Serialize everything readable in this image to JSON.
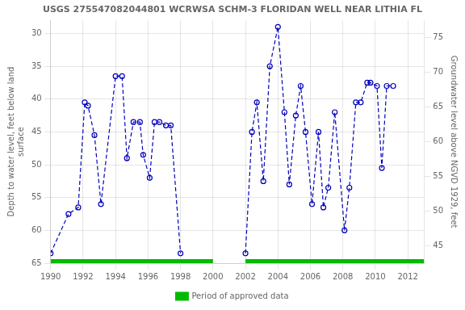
{
  "chart_data": {
    "type": "line",
    "title": "USGS 275547082044801 WCRWSA SCHM-3 FLORIDAN WELL NEAR LITHIA FL",
    "y_label": "Depth to water level, feet below land\nsurface",
    "y2_label": "Groundwater level above NGVD 1929, feet",
    "x": [
      1990.0,
      1991.1,
      1991.7,
      1992.1,
      1992.3,
      1992.7,
      1993.1,
      1994.0,
      1994.4,
      1994.7,
      1995.1,
      1995.5,
      1995.7,
      1996.1,
      1996.4,
      1996.7,
      1997.1,
      1997.4,
      1998.0,
      null,
      2002.0,
      2002.4,
      2002.7,
      2003.1,
      2003.5,
      2004.0,
      2004.4,
      2004.7,
      2005.1,
      2005.4,
      2005.7,
      2006.1,
      2006.5,
      2006.8,
      2007.1,
      2007.5,
      2008.1,
      2008.4,
      2008.8,
      2009.1,
      2009.5,
      2009.7,
      2010.1,
      2010.4,
      2010.7,
      2011.1
    ],
    "series": [
      {
        "color": "#0000bb",
        "marker": "circle",
        "line_style": "dashed",
        "values": [
          63.5,
          57.5,
          56.5,
          40.5,
          41.0,
          45.5,
          56.0,
          36.5,
          36.5,
          49.0,
          43.5,
          43.5,
          48.5,
          52.0,
          43.5,
          43.5,
          44.0,
          44.0,
          63.5,
          null,
          63.5,
          45.0,
          40.5,
          52.5,
          35.0,
          29.0,
          42.0,
          53.0,
          42.5,
          38.0,
          45.0,
          56.0,
          45.0,
          56.5,
          53.5,
          42.0,
          60.0,
          53.5,
          40.5,
          40.5,
          37.5,
          37.5,
          38.0,
          50.5,
          38.0,
          38.0
        ]
      },
      {
        "name": "Period of approved data",
        "type": "span",
        "color": "#00bb00",
        "ranges": [
          [
            1990.0,
            2000.0
          ],
          [
            2002.0,
            2013.0
          ]
        ]
      }
    ],
    "xlim": [
      1990,
      2013
    ],
    "xticks": [
      1990,
      1992,
      1994,
      1996,
      1998,
      2000,
      2002,
      2004,
      2006,
      2008,
      2010,
      2012
    ],
    "ylim": [
      65,
      28
    ],
    "yticks": [
      30,
      35,
      40,
      45,
      50,
      55,
      60,
      65
    ],
    "y2lim": [
      42.5,
      77.5
    ],
    "y2ticks": [
      75,
      70,
      65,
      60,
      55,
      50,
      45
    ],
    "grid": true,
    "legend": "bottom"
  }
}
